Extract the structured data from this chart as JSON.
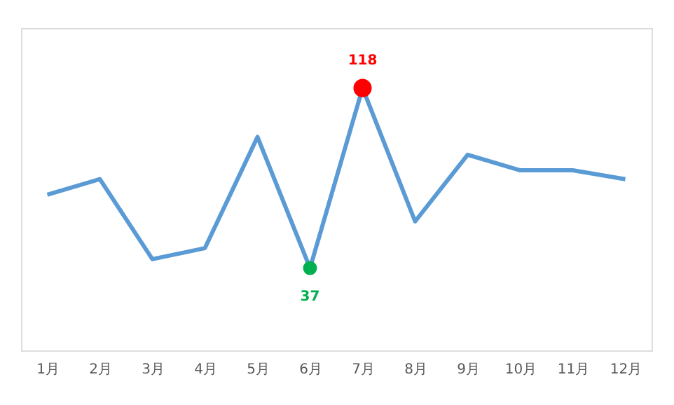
{
  "chart_data": {
    "type": "line",
    "categories": [
      "1月",
      "2月",
      "3月",
      "4月",
      "5月",
      "6月",
      "7月",
      "8月",
      "9月",
      "10月",
      "11月",
      "12月"
    ],
    "ylim": [
      0,
      145
    ],
    "tick_labels": "x",
    "grid": false,
    "series": [
      {
        "type": "line",
        "color": "#5b9bd5",
        "marker": "none",
        "values": [
          70,
          77,
          41,
          46,
          96,
          37,
          118,
          58,
          88,
          81,
          81,
          77
        ]
      },
      {
        "type": "scatter",
        "color": "#00b050",
        "marker": "circle",
        "x": [
          "6月"
        ],
        "values": [
          37
        ],
        "value_labels": [
          "37"
        ]
      },
      {
        "type": "scatter",
        "color": "#ff0000",
        "marker": "circle",
        "x": [
          "7月"
        ],
        "values": [
          118
        ],
        "value_labels": [
          "118"
        ]
      }
    ]
  }
}
